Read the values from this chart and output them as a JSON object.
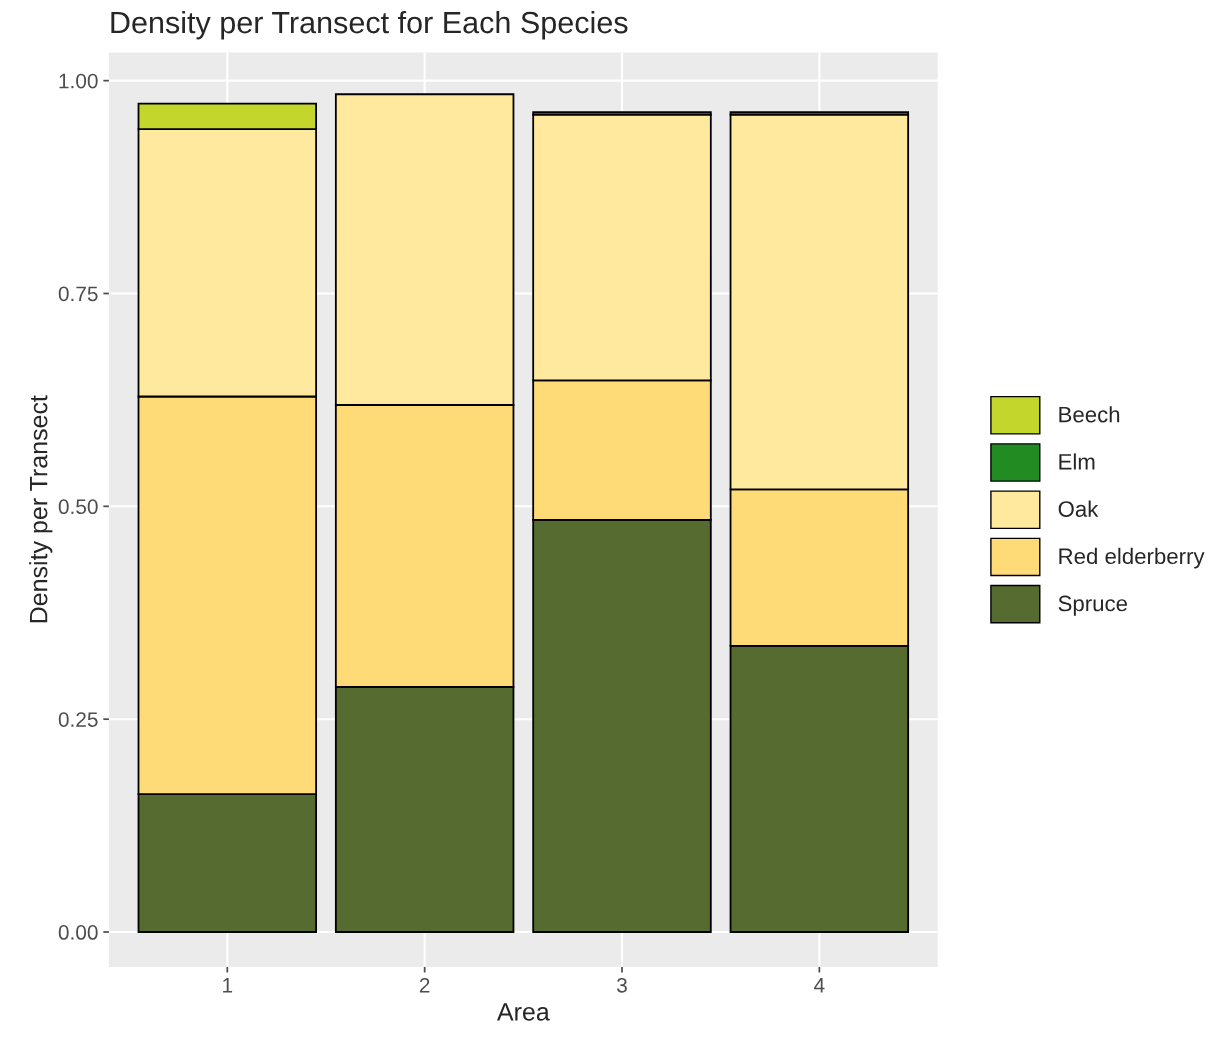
{
  "chart_data": {
    "type": "bar",
    "title": "Density per Transect for Each Species",
    "xlabel": "Area",
    "ylabel": "Density per Transect",
    "stacked": true,
    "categories": [
      "1",
      "2",
      "3",
      "4"
    ],
    "series": [
      {
        "name": "Spruce",
        "color": "#556b2f",
        "values": [
          0.162,
          0.288,
          0.484,
          0.336
        ]
      },
      {
        "name": "Red elderberry",
        "color": "#ffdb77",
        "values": [
          0.467,
          0.331,
          0.164,
          0.184
        ]
      },
      {
        "name": "Oak",
        "color": "#ffe99e",
        "values": [
          0.314,
          0.365,
          0.312,
          0.44
        ]
      },
      {
        "name": "Elm",
        "color": "#228b22",
        "values": [
          null,
          0,
          0.003,
          0.003
        ]
      },
      {
        "name": "Beech",
        "color": "#c2d62c",
        "values": [
          0.03,
          0,
          0,
          0
        ]
      }
    ],
    "ylim": [
      -0.041,
      1.033
    ],
    "yticks": [
      {
        "value": 0,
        "label": "0.00"
      },
      {
        "value": 0.25,
        "label": "0.25"
      },
      {
        "value": 0.5,
        "label": "0.50"
      },
      {
        "value": 0.75,
        "label": "0.75"
      },
      {
        "value": 1,
        "label": "1.00"
      }
    ],
    "grid": true,
    "legend": "right"
  }
}
